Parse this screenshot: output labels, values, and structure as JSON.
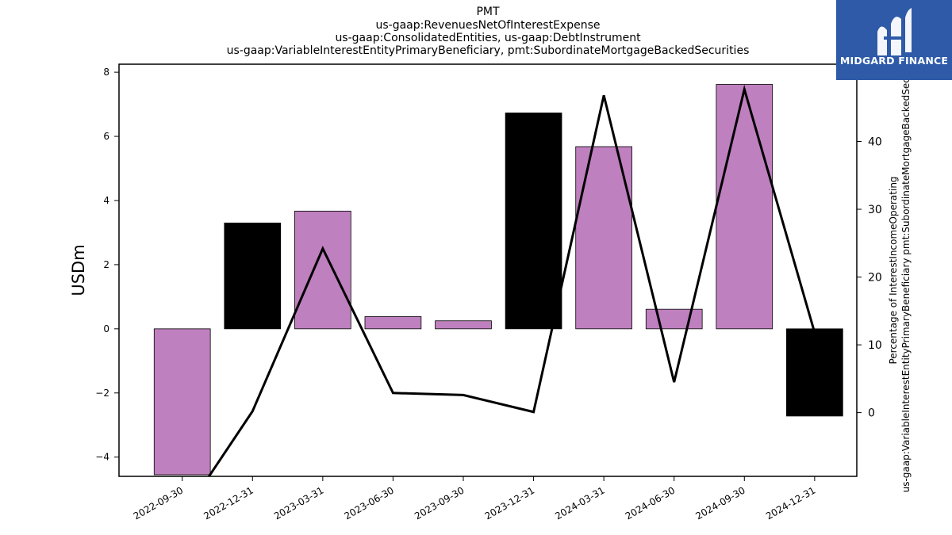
{
  "title_lines": [
    "PMT",
    "us-gaap:RevenuesNetOfInterestExpense",
    "us-gaap:ConsolidatedEntities, us-gaap:DebtInstrument",
    "us-gaap:VariableInterestEntityPrimaryBeneficiary, pmt:SubordinateMortgageBackedSecurities"
  ],
  "logo": {
    "text": "MIDGARD FINANCE",
    "background": "#2e5aa8"
  },
  "chart_data": {
    "type": "bar",
    "categories": [
      "2022-09-30",
      "2022-12-31",
      "2023-03-31",
      "2023-06-30",
      "2023-09-30",
      "2023-12-31",
      "2024-03-31",
      "2024-06-30",
      "2024-09-30",
      "2024-12-31"
    ],
    "series": [
      {
        "type": "bar",
        "axis": "left",
        "values": [
          -4.55,
          3.3,
          3.67,
          0.38,
          0.25,
          6.73,
          5.68,
          0.61,
          7.62,
          -2.72
        ],
        "colors": [
          "#bf80bf",
          "#000000",
          "#bf80bf",
          "#bf80bf",
          "#bf80bf",
          "#000000",
          "#bf80bf",
          "#bf80bf",
          "#bf80bf",
          "#000000"
        ]
      },
      {
        "type": "line",
        "axis": "right",
        "color": "#000000",
        "values": [
          -15.3,
          0.2,
          24.2,
          2.9,
          2.6,
          0.1,
          46.8,
          4.5,
          47.7,
          11.8
        ]
      }
    ],
    "ylabel": "USDm",
    "ylabel_right": "Percentage of InterestIncomeOperating\nus-gaap:VariableInterestEntityPrimaryBeneficiary pmt:SubordinateMortgageBackedSecurities",
    "ylim": [
      -4.6,
      8.25
    ],
    "ylim_right": [
      -9.4,
      51.4
    ],
    "yticks": [
      -4,
      -2,
      0,
      2,
      4,
      6,
      8
    ],
    "yticks_right": [
      0,
      10,
      20,
      30,
      40
    ],
    "grid": false
  }
}
